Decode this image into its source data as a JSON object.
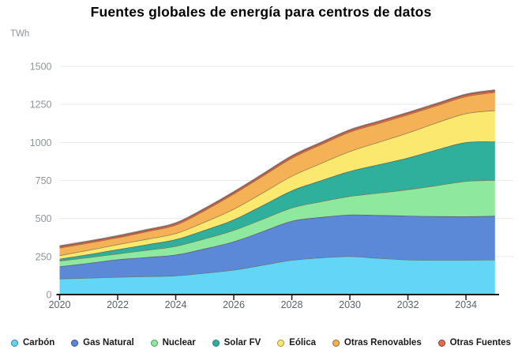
{
  "title": "Fuentes globales de energía para centros de datos",
  "unit_label": "TWh",
  "colors": {
    "background": "#ffffff",
    "grid": "#e9eaeb",
    "axis": "#1a1a1a",
    "y_tick_text": "#8d959c",
    "x_tick_text": "#59626a",
    "boundary_line": "#5c4639",
    "legend_text": "#1a1a1a"
  },
  "chart_data": {
    "type": "area",
    "stacked": true,
    "title": "Fuentes globales de energía para centros de datos",
    "xlabel": "",
    "ylabel": "TWh",
    "xlim": [
      2020,
      2035
    ],
    "ylim": [
      0,
      1500
    ],
    "x_ticks": [
      2020,
      2022,
      2024,
      2026,
      2028,
      2030,
      2032,
      2034
    ],
    "y_ticks": [
      0,
      250,
      500,
      750,
      1000,
      1250,
      1500
    ],
    "grid": "horizontal",
    "legend_position": "bottom",
    "x": [
      2020,
      2021,
      2022,
      2023,
      2024,
      2025,
      2026,
      2027,
      2028,
      2029,
      2030,
      2031,
      2032,
      2033,
      2034,
      2035
    ],
    "stack_order": "bottom-to-top",
    "series": [
      {
        "name": "Carbón",
        "color": "#63D6F8",
        "dark": "#2E7FA3",
        "values": [
          105,
          110,
          116,
          120,
          125,
          142,
          163,
          195,
          227,
          243,
          252,
          240,
          230,
          228,
          228,
          230
        ]
      },
      {
        "name": "Gas Natural",
        "color": "#5C88D8",
        "dark": "#2F4E8F",
        "values": [
          80,
          97,
          115,
          126,
          137,
          160,
          186,
          221,
          257,
          266,
          273,
          282,
          288,
          287,
          286,
          287
        ]
      },
      {
        "name": "Nuclear",
        "color": "#8EE89D",
        "dark": "#4E9A63",
        "values": [
          37,
          38,
          38,
          47,
          57,
          66,
          75,
          81,
          87,
          103,
          122,
          147,
          173,
          203,
          232,
          236
        ]
      },
      {
        "name": "Solar FV",
        "color": "#2FB09D",
        "dark": "#157F72",
        "values": [
          13,
          20,
          28,
          36,
          44,
          56,
          69,
          90,
          113,
          138,
          164,
          186,
          208,
          235,
          255,
          253
        ]
      },
      {
        "name": "Eólica",
        "color": "#FAE96E",
        "dark": "#A3902E",
        "values": [
          23,
          28,
          33,
          36,
          40,
          54,
          70,
          83,
          96,
          113,
          131,
          148,
          165,
          178,
          190,
          205
        ]
      },
      {
        "name": "Otras Renovables",
        "color": "#F5B155",
        "dark": "#9A6426",
        "values": [
          50,
          47,
          45,
          50,
          55,
          76,
          100,
          110,
          118,
          123,
          127,
          123,
          119,
          112,
          112,
          120
        ]
      },
      {
        "name": "Otras Fuentes",
        "color": "#F0694F",
        "dark": "#6E4038",
        "values": [
          10,
          10,
          10,
          10,
          11,
          11,
          11,
          11,
          12,
          12,
          12,
          12,
          12,
          12,
          12,
          12
        ]
      }
    ]
  }
}
